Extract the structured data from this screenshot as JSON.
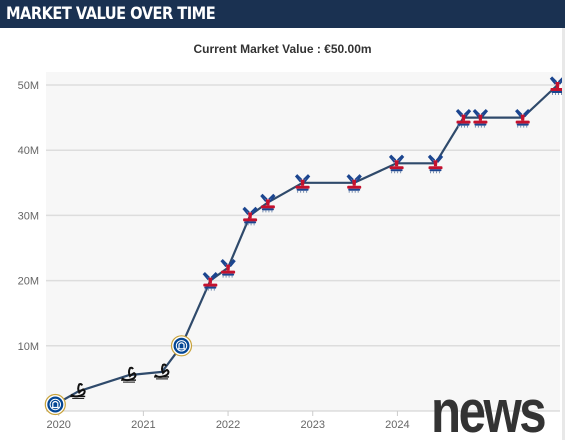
{
  "header": {
    "title": "MARKET VALUE OVER TIME"
  },
  "current_value_text": "Current Market Value : €50.00m",
  "watermark": {
    "text": "news"
  },
  "colors": {
    "header_bg": "#1a3151",
    "line": "#2f4a6b",
    "grid": "#dddddd",
    "plot_bg": "#f7f7f7"
  },
  "chart_data": {
    "type": "line",
    "title": "Current Market Value : €50.00m",
    "xlabel": "",
    "ylabel": "",
    "x_ticks": [
      "2020",
      "2021",
      "2022",
      "2023",
      "2024"
    ],
    "y_ticks": [
      "10M",
      "20M",
      "30M",
      "40M",
      "50M"
    ],
    "xlim": [
      2019.85,
      2025.92
    ],
    "ylim": [
      0,
      52
    ],
    "grid": true,
    "series": [
      {
        "points": [
          {
            "x": 2019.96,
            "y": 1.0,
            "club": "Chelsea",
            "icon": "chelsea-crest-icon"
          },
          {
            "x": 2020.23,
            "y": 3.0,
            "club": "Swansea City",
            "icon": "swansea-swan-icon"
          },
          {
            "x": 2020.83,
            "y": 5.5,
            "club": "Swansea City",
            "icon": "swansea-swan-icon"
          },
          {
            "x": 2021.22,
            "y": 6.0,
            "club": "Swansea City",
            "icon": "swansea-swan-icon"
          },
          {
            "x": 2021.45,
            "y": 10.0,
            "club": "Chelsea",
            "icon": "chelsea-crest-icon"
          },
          {
            "x": 2021.79,
            "y": 20.0,
            "club": "Crystal Palace",
            "icon": "crystal-palace-eagle-icon"
          },
          {
            "x": 2022.0,
            "y": 22.0,
            "club": "Crystal Palace",
            "icon": "crystal-palace-eagle-icon"
          },
          {
            "x": 2022.26,
            "y": 30.0,
            "club": "Crystal Palace",
            "icon": "crystal-palace-eagle-icon"
          },
          {
            "x": 2022.47,
            "y": 32.0,
            "club": "Crystal Palace",
            "icon": "crystal-palace-eagle-icon"
          },
          {
            "x": 2022.88,
            "y": 35.0,
            "club": "Crystal Palace",
            "icon": "crystal-palace-eagle-icon"
          },
          {
            "x": 2023.49,
            "y": 35.0,
            "club": "Crystal Palace",
            "icon": "crystal-palace-eagle-icon"
          },
          {
            "x": 2023.99,
            "y": 38.0,
            "club": "Crystal Palace",
            "icon": "crystal-palace-eagle-icon"
          },
          {
            "x": 2024.45,
            "y": 38.0,
            "club": "Crystal Palace",
            "icon": "crystal-palace-eagle-icon"
          },
          {
            "x": 2024.78,
            "y": 45.0,
            "club": "Crystal Palace",
            "icon": "crystal-palace-eagle-icon"
          },
          {
            "x": 2024.98,
            "y": 45.0,
            "club": "Crystal Palace",
            "icon": "crystal-palace-eagle-icon"
          },
          {
            "x": 2025.48,
            "y": 45.0,
            "club": "Crystal Palace",
            "icon": "crystal-palace-eagle-icon"
          },
          {
            "x": 2025.89,
            "y": 50.0,
            "club": "Crystal Palace",
            "icon": "crystal-palace-eagle-icon"
          }
        ]
      }
    ]
  }
}
